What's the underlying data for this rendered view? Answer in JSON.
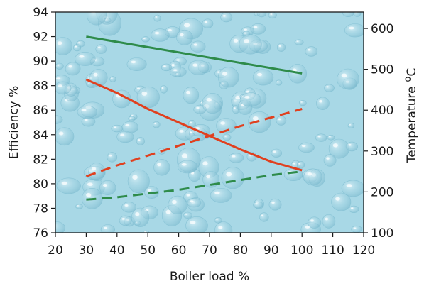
{
  "chart_data": {
    "type": "line",
    "xlabel": "Boiler load %",
    "ylabel_left": "Efficiency %",
    "ylabel_right": "Temperature",
    "ylabel_right_unit_sup": "o",
    "ylabel_right_unit": "C",
    "xlim": [
      20,
      120
    ],
    "ylim_left": [
      76,
      94
    ],
    "ylim_right": [
      100,
      640
    ],
    "x_ticks": [
      20,
      30,
      40,
      50,
      60,
      70,
      80,
      90,
      100,
      110,
      120
    ],
    "y_left_ticks": [
      76,
      78,
      80,
      82,
      84,
      86,
      88,
      90,
      92,
      94
    ],
    "y_right_ticks": [
      100,
      200,
      300,
      400,
      500,
      600
    ],
    "grid": false,
    "legend": "none",
    "series": [
      {
        "axis": "left",
        "color": "#2e8b4a",
        "style": "solid",
        "x": [
          30,
          100
        ],
        "y": [
          92.0,
          89.0
        ]
      },
      {
        "axis": "left",
        "color": "#e0401f",
        "style": "solid",
        "x": [
          30,
          40,
          50,
          60,
          70,
          80,
          90,
          100
        ],
        "y": [
          88.5,
          87.4,
          86.1,
          85.0,
          83.9,
          82.8,
          81.8,
          81.1
        ]
      },
      {
        "axis": "left",
        "color": "#e0401f",
        "style": "dashed",
        "x": [
          30,
          40,
          50,
          60,
          70,
          80,
          90,
          100
        ],
        "y": [
          80.6,
          81.5,
          82.3,
          83.1,
          83.9,
          84.7,
          85.4,
          86.1
        ]
      },
      {
        "axis": "left",
        "color": "#2e8b4a",
        "style": "dashed",
        "x": [
          30,
          40,
          50,
          60,
          70,
          80,
          90,
          100
        ],
        "y": [
          78.7,
          78.9,
          79.2,
          79.5,
          79.9,
          80.3,
          80.7,
          81.0
        ]
      }
    ],
    "background_color": "#a8d8e6"
  }
}
